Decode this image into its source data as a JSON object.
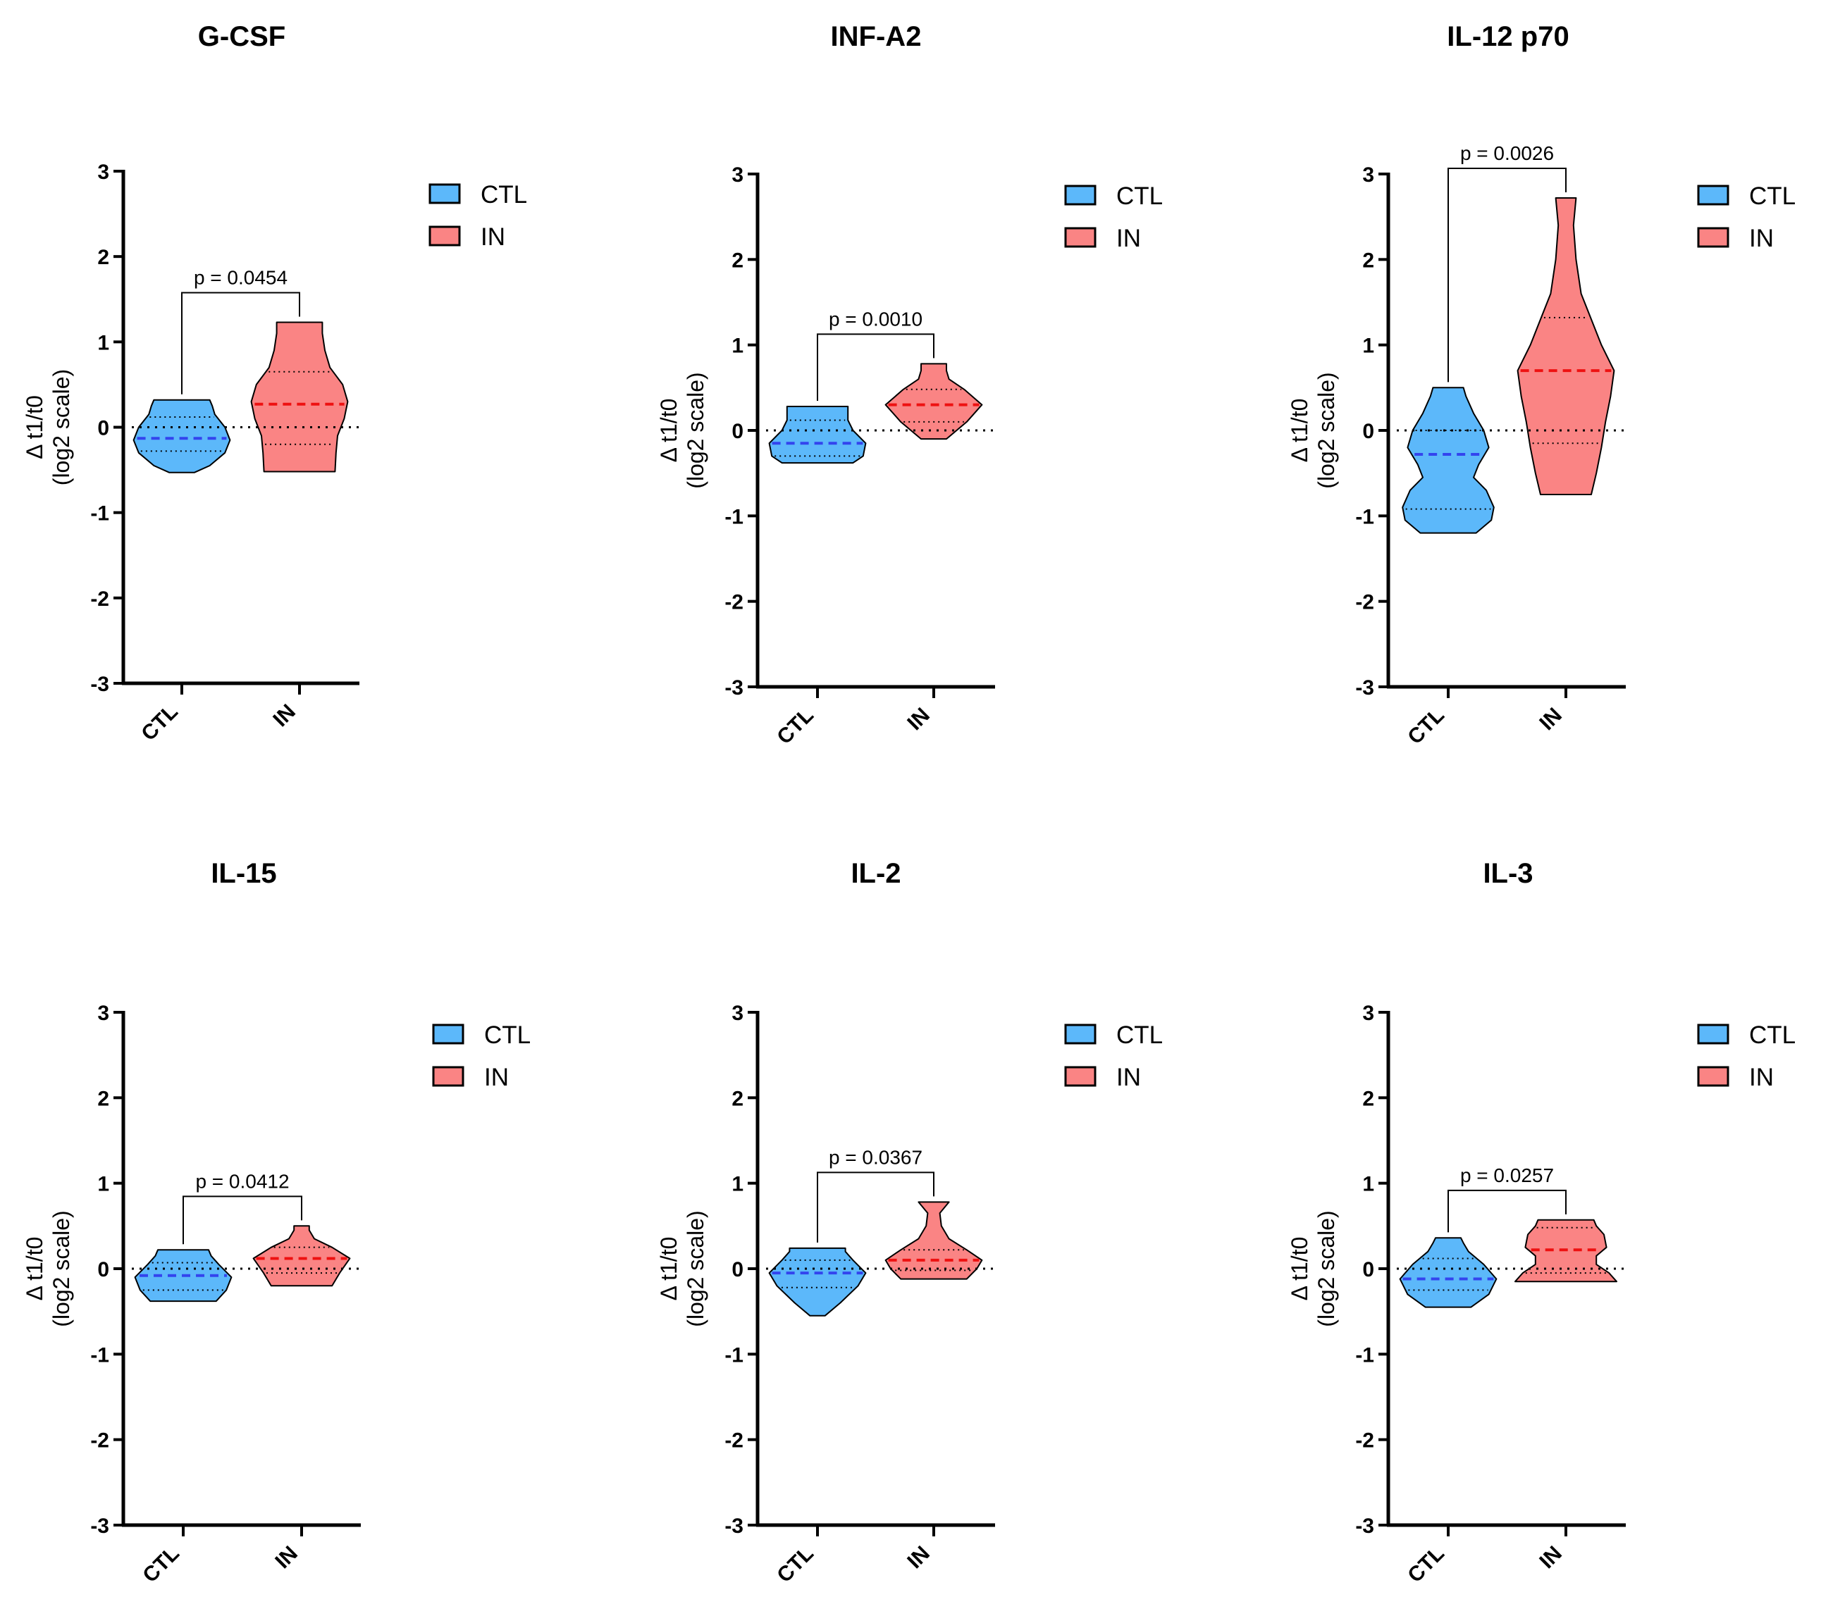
{
  "colors": {
    "ctl_fill": "#5cb8fa",
    "in_fill": "#fa8484",
    "ctl_median": "#3344ee",
    "in_median": "#ee1111",
    "axis": "#000000"
  },
  "chart_data": [
    {
      "type": "violin",
      "title": "G-CSF",
      "ylabel_line1": "Δ t1/t0",
      "ylabel_line2": "(log2 scale)",
      "categories": [
        "CTL",
        "IN"
      ],
      "ylim": [
        -3,
        3
      ],
      "yticks": [
        "3",
        "2",
        "1",
        "0",
        "-1",
        "-2",
        "-3"
      ],
      "legend": [
        {
          "label": "CTL"
        },
        {
          "label": "IN"
        }
      ],
      "p_label": "p = 0.0454",
      "series": [
        {
          "name": "CTL",
          "min": -0.53,
          "max": 0.32,
          "q1": -0.28,
          "median": -0.13,
          "q3": 0.12,
          "profile": [
            [
              -0.53,
              0.25
            ],
            [
              -0.45,
              0.55
            ],
            [
              -0.3,
              0.85
            ],
            [
              -0.15,
              0.95
            ],
            [
              0.0,
              0.85
            ],
            [
              0.15,
              0.65
            ],
            [
              0.25,
              0.6
            ],
            [
              0.32,
              0.55
            ]
          ]
        },
        {
          "name": "IN",
          "min": -0.52,
          "max": 1.23,
          "q1": -0.2,
          "median": 0.27,
          "q3": 0.65,
          "profile": [
            [
              -0.52,
              0.7
            ],
            [
              -0.3,
              0.72
            ],
            [
              -0.1,
              0.75
            ],
            [
              0.1,
              0.88
            ],
            [
              0.3,
              0.95
            ],
            [
              0.5,
              0.85
            ],
            [
              0.7,
              0.6
            ],
            [
              0.9,
              0.5
            ],
            [
              1.1,
              0.45
            ],
            [
              1.23,
              0.45
            ]
          ]
        }
      ]
    },
    {
      "type": "violin",
      "title": "INF-A2",
      "ylabel_line1": "Δ t1/t0",
      "ylabel_line2": "(log2 scale)",
      "categories": [
        "CTL",
        "IN"
      ],
      "ylim": [
        -3,
        3
      ],
      "yticks": [
        "3",
        "2",
        "1",
        "0",
        "-1",
        "-2",
        "-3"
      ],
      "legend": [
        {
          "label": "CTL"
        },
        {
          "label": "IN"
        }
      ],
      "p_label": "p = 0.0010",
      "series": [
        {
          "name": "CTL",
          "min": -0.38,
          "max": 0.28,
          "q1": -0.3,
          "median": -0.15,
          "q3": 0.12,
          "profile": [
            [
              -0.38,
              0.7
            ],
            [
              -0.3,
              0.9
            ],
            [
              -0.15,
              0.95
            ],
            [
              0.0,
              0.7
            ],
            [
              0.12,
              0.6
            ],
            [
              0.28,
              0.6
            ]
          ]
        },
        {
          "name": "IN",
          "min": -0.1,
          "max": 0.78,
          "q1": 0.1,
          "median": 0.3,
          "q3": 0.48,
          "profile": [
            [
              -0.1,
              0.25
            ],
            [
              0.0,
              0.45
            ],
            [
              0.1,
              0.65
            ],
            [
              0.3,
              0.95
            ],
            [
              0.48,
              0.6
            ],
            [
              0.6,
              0.3
            ],
            [
              0.7,
              0.25
            ],
            [
              0.78,
              0.25
            ]
          ]
        }
      ]
    },
    {
      "type": "violin",
      "title": "IL-12 p70",
      "ylabel_line1": "Δ t1/t0",
      "ylabel_line2": "(log2 scale)",
      "categories": [
        "CTL",
        "IN"
      ],
      "ylim": [
        -3,
        3
      ],
      "yticks": [
        "3",
        "2",
        "1",
        "0",
        "-1",
        "-2",
        "-3"
      ],
      "legend": [
        {
          "label": "CTL"
        },
        {
          "label": "IN"
        }
      ],
      "p_label": "p = 0.0026",
      "series": [
        {
          "name": "CTL",
          "min": -1.2,
          "max": 0.5,
          "q1": -0.92,
          "median": -0.28,
          "q3": 0.0,
          "profile": [
            [
              -1.2,
              0.55
            ],
            [
              -1.05,
              0.85
            ],
            [
              -0.9,
              0.9
            ],
            [
              -0.7,
              0.75
            ],
            [
              -0.55,
              0.5
            ],
            [
              -0.4,
              0.6
            ],
            [
              -0.2,
              0.8
            ],
            [
              0.0,
              0.7
            ],
            [
              0.2,
              0.5
            ],
            [
              0.4,
              0.35
            ],
            [
              0.5,
              0.3
            ]
          ]
        },
        {
          "name": "IN",
          "min": -0.75,
          "max": 2.72,
          "q1": -0.15,
          "median": 0.7,
          "q3": 1.32,
          "profile": [
            [
              -0.75,
              0.5
            ],
            [
              -0.5,
              0.6
            ],
            [
              -0.2,
              0.7
            ],
            [
              0.1,
              0.78
            ],
            [
              0.4,
              0.88
            ],
            [
              0.7,
              0.95
            ],
            [
              1.0,
              0.7
            ],
            [
              1.3,
              0.5
            ],
            [
              1.6,
              0.3
            ],
            [
              2.0,
              0.2
            ],
            [
              2.4,
              0.15
            ],
            [
              2.72,
              0.2
            ]
          ]
        }
      ]
    },
    {
      "type": "violin",
      "title": "IL-15",
      "ylabel_line1": "Δ t1/t0",
      "ylabel_line2": "(log2 scale)",
      "categories": [
        "CTL",
        "IN"
      ],
      "ylim": [
        -3,
        3
      ],
      "yticks": [
        "3",
        "2",
        "1",
        "0",
        "-1",
        "-2",
        "-3"
      ],
      "legend": [
        {
          "label": "CTL"
        },
        {
          "label": "IN"
        }
      ],
      "p_label": "p = 0.0412",
      "series": [
        {
          "name": "CTL",
          "min": -0.38,
          "max": 0.22,
          "q1": -0.25,
          "median": -0.08,
          "q3": 0.07,
          "profile": [
            [
              -0.38,
              0.65
            ],
            [
              -0.25,
              0.85
            ],
            [
              -0.1,
              0.95
            ],
            [
              0.05,
              0.7
            ],
            [
              0.15,
              0.55
            ],
            [
              0.22,
              0.5
            ]
          ]
        },
        {
          "name": "IN",
          "min": -0.2,
          "max": 0.5,
          "q1": -0.05,
          "median": 0.12,
          "q3": 0.25,
          "profile": [
            [
              -0.2,
              0.6
            ],
            [
              -0.05,
              0.75
            ],
            [
              0.12,
              0.95
            ],
            [
              0.25,
              0.6
            ],
            [
              0.35,
              0.25
            ],
            [
              0.45,
              0.15
            ],
            [
              0.5,
              0.15
            ]
          ]
        }
      ]
    },
    {
      "type": "violin",
      "title": "IL-2",
      "ylabel_line1": "Δ t1/t0",
      "ylabel_line2": "(log2 scale)",
      "categories": [
        "CTL",
        "IN"
      ],
      "ylim": [
        -3,
        3
      ],
      "yticks": [
        "3",
        "2",
        "1",
        "0",
        "-1",
        "-2",
        "-3"
      ],
      "legend": [
        {
          "label": "CTL"
        },
        {
          "label": "IN"
        }
      ],
      "p_label": "p = 0.0367",
      "series": [
        {
          "name": "CTL",
          "min": -0.55,
          "max": 0.24,
          "q1": -0.22,
          "median": -0.05,
          "q3": 0.1,
          "profile": [
            [
              -0.55,
              0.15
            ],
            [
              -0.4,
              0.45
            ],
            [
              -0.2,
              0.8
            ],
            [
              -0.05,
              0.95
            ],
            [
              0.1,
              0.7
            ],
            [
              0.2,
              0.55
            ],
            [
              0.24,
              0.55
            ]
          ]
        },
        {
          "name": "IN",
          "min": -0.12,
          "max": 0.78,
          "q1": -0.02,
          "median": 0.1,
          "q3": 0.22,
          "profile": [
            [
              -0.12,
              0.65
            ],
            [
              0.0,
              0.85
            ],
            [
              0.1,
              0.95
            ],
            [
              0.22,
              0.65
            ],
            [
              0.35,
              0.3
            ],
            [
              0.5,
              0.15
            ],
            [
              0.65,
              0.12
            ],
            [
              0.78,
              0.3
            ]
          ]
        }
      ]
    },
    {
      "type": "violin",
      "title": "IL-3",
      "ylabel_line1": "Δ t1/t0",
      "ylabel_line2": "(log2 scale)",
      "categories": [
        "CTL",
        "IN"
      ],
      "ylim": [
        -3,
        3
      ],
      "yticks": [
        "3",
        "2",
        "1",
        "0",
        "-1",
        "-2",
        "-3"
      ],
      "legend": [
        {
          "label": "CTL"
        },
        {
          "label": "IN"
        }
      ],
      "p_label": "p = 0.0257",
      "series": [
        {
          "name": "CTL",
          "min": -0.45,
          "max": 0.36,
          "q1": -0.25,
          "median": -0.12,
          "q3": 0.12,
          "profile": [
            [
              -0.45,
              0.45
            ],
            [
              -0.3,
              0.8
            ],
            [
              -0.12,
              0.95
            ],
            [
              0.05,
              0.7
            ],
            [
              0.2,
              0.4
            ],
            [
              0.3,
              0.3
            ],
            [
              0.36,
              0.25
            ]
          ]
        },
        {
          "name": "IN",
          "min": -0.15,
          "max": 0.57,
          "q1": -0.05,
          "median": 0.22,
          "q3": 0.48,
          "profile": [
            [
              -0.15,
              1.0
            ],
            [
              -0.05,
              0.85
            ],
            [
              0.05,
              0.6
            ],
            [
              0.15,
              0.6
            ],
            [
              0.25,
              0.8
            ],
            [
              0.4,
              0.75
            ],
            [
              0.5,
              0.6
            ],
            [
              0.57,
              0.55
            ]
          ]
        }
      ]
    }
  ]
}
